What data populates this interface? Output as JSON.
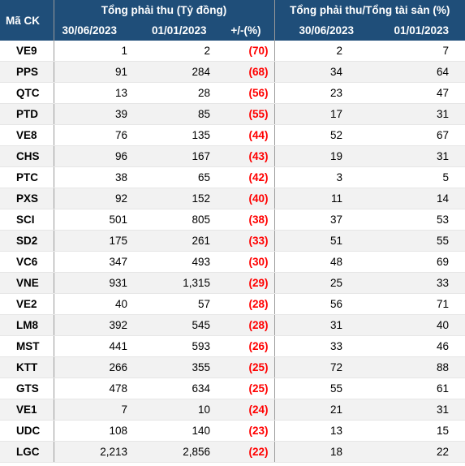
{
  "header": {
    "symbol": "Mã CK",
    "group1": "Tổng phải thu (Tỷ đồng)",
    "group2": "Tổng phải thu/Tổng tài sản (%)",
    "date1": "30/06/2023",
    "date2": "01/01/2023",
    "change": "+/-(%)",
    "date3": "30/06/2023",
    "date4": "01/01/2023"
  },
  "rows": [
    {
      "sym": "VE9",
      "r1": "1",
      "r2": "2",
      "chg": "(70)",
      "p1": "2",
      "p2": "7"
    },
    {
      "sym": "PPS",
      "r1": "91",
      "r2": "284",
      "chg": "(68)",
      "p1": "34",
      "p2": "64"
    },
    {
      "sym": "QTC",
      "r1": "13",
      "r2": "28",
      "chg": "(56)",
      "p1": "23",
      "p2": "47"
    },
    {
      "sym": "PTD",
      "r1": "39",
      "r2": "85",
      "chg": "(55)",
      "p1": "17",
      "p2": "31"
    },
    {
      "sym": "VE8",
      "r1": "76",
      "r2": "135",
      "chg": "(44)",
      "p1": "52",
      "p2": "67"
    },
    {
      "sym": "CHS",
      "r1": "96",
      "r2": "167",
      "chg": "(43)",
      "p1": "19",
      "p2": "31"
    },
    {
      "sym": "PTC",
      "r1": "38",
      "r2": "65",
      "chg": "(42)",
      "p1": "3",
      "p2": "5"
    },
    {
      "sym": "PXS",
      "r1": "92",
      "r2": "152",
      "chg": "(40)",
      "p1": "11",
      "p2": "14"
    },
    {
      "sym": "SCI",
      "r1": "501",
      "r2": "805",
      "chg": "(38)",
      "p1": "37",
      "p2": "53"
    },
    {
      "sym": "SD2",
      "r1": "175",
      "r2": "261",
      "chg": "(33)",
      "p1": "51",
      "p2": "55"
    },
    {
      "sym": "VC6",
      "r1": "347",
      "r2": "493",
      "chg": "(30)",
      "p1": "48",
      "p2": "69"
    },
    {
      "sym": "VNE",
      "r1": "931",
      "r2": "1,315",
      "chg": "(29)",
      "p1": "25",
      "p2": "33"
    },
    {
      "sym": "VE2",
      "r1": "40",
      "r2": "57",
      "chg": "(28)",
      "p1": "56",
      "p2": "71"
    },
    {
      "sym": "LM8",
      "r1": "392",
      "r2": "545",
      "chg": "(28)",
      "p1": "31",
      "p2": "40"
    },
    {
      "sym": "MST",
      "r1": "441",
      "r2": "593",
      "chg": "(26)",
      "p1": "33",
      "p2": "46"
    },
    {
      "sym": "KTT",
      "r1": "266",
      "r2": "355",
      "chg": "(25)",
      "p1": "72",
      "p2": "88"
    },
    {
      "sym": "GTS",
      "r1": "478",
      "r2": "634",
      "chg": "(25)",
      "p1": "55",
      "p2": "61"
    },
    {
      "sym": "VE1",
      "r1": "7",
      "r2": "10",
      "chg": "(24)",
      "p1": "21",
      "p2": "31"
    },
    {
      "sym": "UDC",
      "r1": "108",
      "r2": "140",
      "chg": "(23)",
      "p1": "13",
      "p2": "15"
    },
    {
      "sym": "LGC",
      "r1": "2,213",
      "r2": "2,856",
      "chg": "(22)",
      "p1": "18",
      "p2": "22"
    }
  ],
  "colors": {
    "header_bg": "#1f4e79",
    "header_text": "#ffffff",
    "negative": "#ff0000",
    "stripe": "#f2f2f2"
  }
}
